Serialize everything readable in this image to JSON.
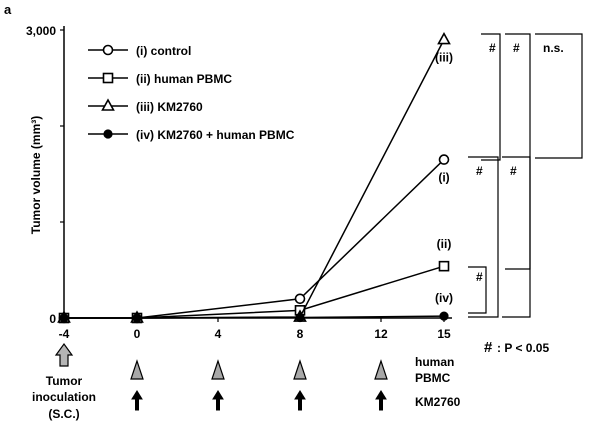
{
  "chart_data": {
    "type": "line",
    "panel_label": "a",
    "ylabel": "Tumor volume (mm³)",
    "ylim": [
      0,
      3000
    ],
    "y_ticks": [
      0,
      1000,
      2000,
      3000
    ],
    "y_tick_labels": [
      "0",
      "",
      "",
      "3,000"
    ],
    "x_ticks": [
      -4,
      0,
      4,
      8,
      12,
      15
    ],
    "x_tick_labels": [
      "-4",
      "0",
      "4",
      "8",
      "12",
      "15"
    ],
    "series": [
      {
        "name": "(i) control",
        "label": "(i)",
        "marker": "circle-open",
        "x": [
          -4,
          0,
          8,
          15
        ],
        "values": [
          0,
          0,
          200,
          1650
        ]
      },
      {
        "name": "(ii) human PBMC",
        "label": "(ii)",
        "marker": "square-open",
        "x": [
          -4,
          0,
          8,
          15
        ],
        "values": [
          0,
          0,
          80,
          540
        ]
      },
      {
        "name": "(iii) KM2760",
        "label": "(iii)",
        "marker": "triangle-open",
        "x": [
          -4,
          0,
          8,
          15
        ],
        "values": [
          0,
          0,
          10,
          2900
        ]
      },
      {
        "name": "(iv) KM2760 + human PBMC",
        "label": "(iv)",
        "marker": "circle-filled",
        "x": [
          -4,
          0,
          8,
          15
        ],
        "values": [
          0,
          0,
          5,
          20
        ]
      }
    ],
    "significance": [
      {
        "pair": "(iii) vs (i)",
        "mark": "#"
      },
      {
        "pair": "(iii) vs (ii)",
        "mark": "#"
      },
      {
        "pair": "(iii) vs (iv)",
        "mark": "n.s."
      },
      {
        "pair": "(i) vs (iv)",
        "mark": "#"
      },
      {
        "pair": "(ii) vs (iv)",
        "mark": "#"
      },
      {
        "pair": "(i) vs (ii)",
        "mark": "#"
      }
    ],
    "significance_note": {
      "mark": "#",
      "text": ": P < 0.05"
    },
    "treatment": {
      "tumor_label_line1": "Tumor",
      "tumor_label_line2": "inoculation",
      "tumor_label_line3": "(S.C.)",
      "tumor_day": -4,
      "pbmc_label_line1": "human",
      "pbmc_label_line2": "PBMC",
      "pbmc_days": [
        0,
        4,
        8,
        12
      ],
      "km_label": "KM2760",
      "km_days": [
        0,
        4,
        8,
        12
      ]
    }
  }
}
